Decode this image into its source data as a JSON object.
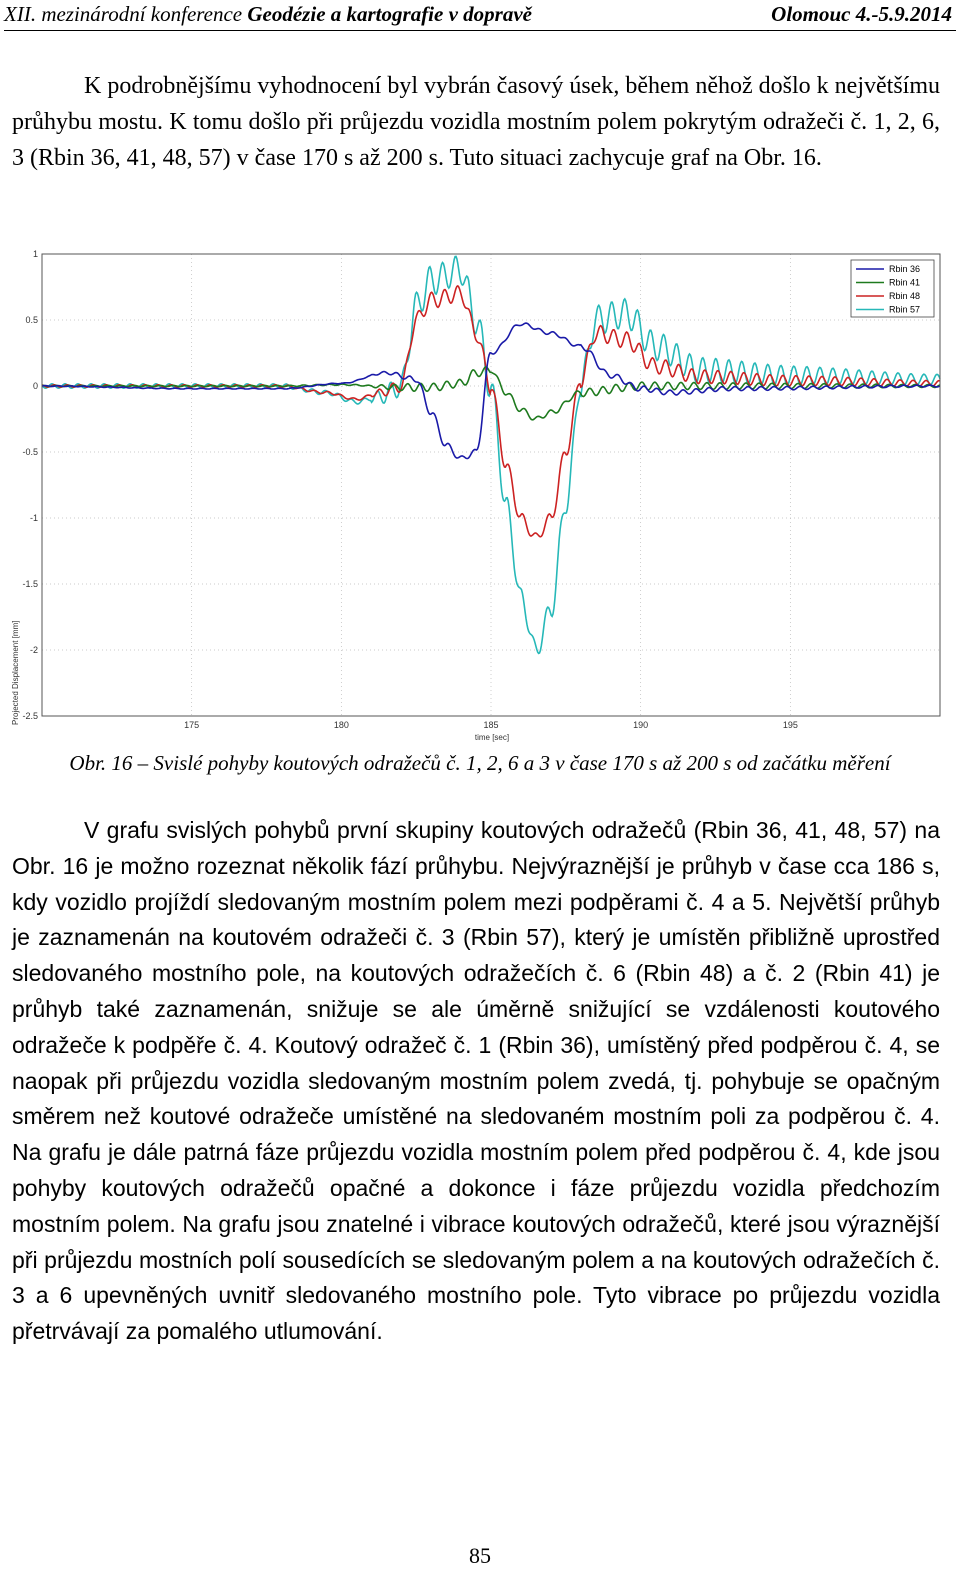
{
  "header": {
    "left_prefix": "XII. mezinárodní konference ",
    "left_title": "Geodézie a kartografie v dopravě",
    "right": "Olomouc 4.-5.9.2014"
  },
  "paragraph1": "K podrobnějšímu vyhodnocení byl vybrán časový úsek, během něhož došlo k největšímu průhybu mostu. K tomu došlo při průjezdu vozidla mostním polem pokrytým odražeči č. 1, 2, 6, 3 (Rbin 36, 41, 48, 57) v čase 170 s až 200 s. Tuto situaci zachycuje graf na Obr. 16.",
  "caption": "Obr. 16 – Svislé pohyby koutových odražečů č. 1, 2, 6 a 3 v čase 170 s až 200 s od začátku měření",
  "paragraph2": "V grafu svislých pohybů první skupiny koutových odražečů (Rbin 36, 41, 48, 57) na Obr. 16 je možno rozeznat několik fází průhybu. Nejvýraznější je průhyb v čase cca 186 s, kdy vozidlo projíždí sledovaným mostním polem mezi podpěrami č. 4 a 5. Největší průhyb je zaznamenán na koutovém odražeči č. 3 (Rbin 57), který je umístěn přibližně uprostřed sledovaného mostního pole, na koutových odražečích č. 6 (Rbin 48) a č. 2 (Rbin 41) je průhyb také zaznamenán, snižuje se ale úměrně snižující se vzdálenosti koutového odražeče k podpěře č. 4. Koutový odražeč č. 1 (Rbin 36), umístěný před podpěrou č. 4, se naopak při průjezdu vozidla sledovaným mostním polem zvedá, tj. pohybuje se opačným směrem než koutové odražeče umístěné na sledovaném mostním poli za podpěrou č. 4. Na grafu je dále patrná fáze průjezdu vozidla mostním polem před podpěrou č. 4, kde jsou pohyby koutových odražečů opačné a dokonce i fáze průjezdu vozidla předchozím mostním polem. Na grafu jsou znatelné i vibrace koutových odražečů, které jsou výraznější při průjezdu mostních polí sousedících se sledovaným polem a na koutových odražečích č. 3 a 6 upevněných uvnitř sledovaného mostního pole. Tyto vibrace po průjezdu vozidla přetrvávají za pomalého utlumování.",
  "page_number": "85",
  "chart_data": {
    "type": "line",
    "xlabel": "time [sec]",
    "ylabel": "Projected Displacement [mm]",
    "xlim": [
      170,
      200
    ],
    "ylim": [
      -2.5,
      1
    ],
    "xticks": [
      175,
      180,
      185,
      190,
      195
    ],
    "yticks": [
      1,
      0.5,
      0,
      -0.5,
      -1,
      -1.5,
      -2,
      -2.5
    ],
    "grid": "dotted",
    "legend": "top-right",
    "series": [
      {
        "name": "Rbin 36",
        "color": "#1a1aa8",
        "vib": 0.02,
        "points": [
          [
            170,
            0.0
          ],
          [
            175,
            -0.02
          ],
          [
            178,
            -0.02
          ],
          [
            180,
            0.02
          ],
          [
            181.5,
            0.1
          ],
          [
            182.5,
            0.05
          ],
          [
            183,
            -0.2
          ],
          [
            183.5,
            -0.45
          ],
          [
            184,
            -0.55
          ],
          [
            184.5,
            -0.5
          ],
          [
            185,
            0.25
          ],
          [
            186,
            0.47
          ],
          [
            187,
            0.4
          ],
          [
            188,
            0.3
          ],
          [
            189,
            0.08
          ],
          [
            190,
            -0.02
          ],
          [
            191,
            -0.05
          ],
          [
            193,
            -0.02
          ],
          [
            200,
            0.0
          ]
        ]
      },
      {
        "name": "Rbin 41",
        "color": "#1e7a1e",
        "vib": 0.03,
        "points": [
          [
            170,
            0.0
          ],
          [
            178,
            0.0
          ],
          [
            180,
            0.01
          ],
          [
            182,
            -0.01
          ],
          [
            183,
            -0.01
          ],
          [
            184,
            0.02
          ],
          [
            184.5,
            0.1
          ],
          [
            185,
            0.12
          ],
          [
            185.5,
            -0.05
          ],
          [
            186,
            -0.18
          ],
          [
            186.5,
            -0.25
          ],
          [
            187,
            -0.2
          ],
          [
            188,
            -0.05
          ],
          [
            190,
            0.0
          ],
          [
            200,
            0.0
          ]
        ]
      },
      {
        "name": "Rbin 48",
        "color": "#cc2222",
        "vib": 0.06,
        "points": [
          [
            170,
            0.0
          ],
          [
            178,
            0.0
          ],
          [
            179.5,
            -0.05
          ],
          [
            180.5,
            -0.1
          ],
          [
            181.3,
            -0.05
          ],
          [
            182,
            0.0
          ],
          [
            182.5,
            0.5
          ],
          [
            183,
            0.65
          ],
          [
            184,
            0.7
          ],
          [
            184.5,
            0.4
          ],
          [
            185,
            0.0
          ],
          [
            185.5,
            -0.6
          ],
          [
            186,
            -1.0
          ],
          [
            186.5,
            -1.15
          ],
          [
            187,
            -1.0
          ],
          [
            187.5,
            -0.5
          ],
          [
            188,
            0.05
          ],
          [
            188.5,
            0.4
          ],
          [
            189.5,
            0.35
          ],
          [
            190.5,
            0.15
          ],
          [
            192,
            0.07
          ],
          [
            195,
            0.04
          ],
          [
            200,
            0.02
          ]
        ]
      },
      {
        "name": "Rbin 57",
        "color": "#26b8b8",
        "vib": 0.11,
        "points": [
          [
            170,
            0.0
          ],
          [
            178,
            0.0
          ],
          [
            179.5,
            -0.05
          ],
          [
            180.5,
            -0.12
          ],
          [
            181.3,
            -0.08
          ],
          [
            182,
            0.0
          ],
          [
            182.5,
            0.6
          ],
          [
            183,
            0.8
          ],
          [
            184,
            0.88
          ],
          [
            184.5,
            0.5
          ],
          [
            185,
            0.0
          ],
          [
            185.5,
            -0.9
          ],
          [
            186,
            -1.6
          ],
          [
            186.5,
            -2.0
          ],
          [
            187,
            -1.7
          ],
          [
            187.5,
            -0.9
          ],
          [
            188,
            0.0
          ],
          [
            188.5,
            0.5
          ],
          [
            189.5,
            0.55
          ],
          [
            190.5,
            0.3
          ],
          [
            192,
            0.12
          ],
          [
            195,
            0.08
          ],
          [
            200,
            0.05
          ]
        ]
      }
    ]
  }
}
